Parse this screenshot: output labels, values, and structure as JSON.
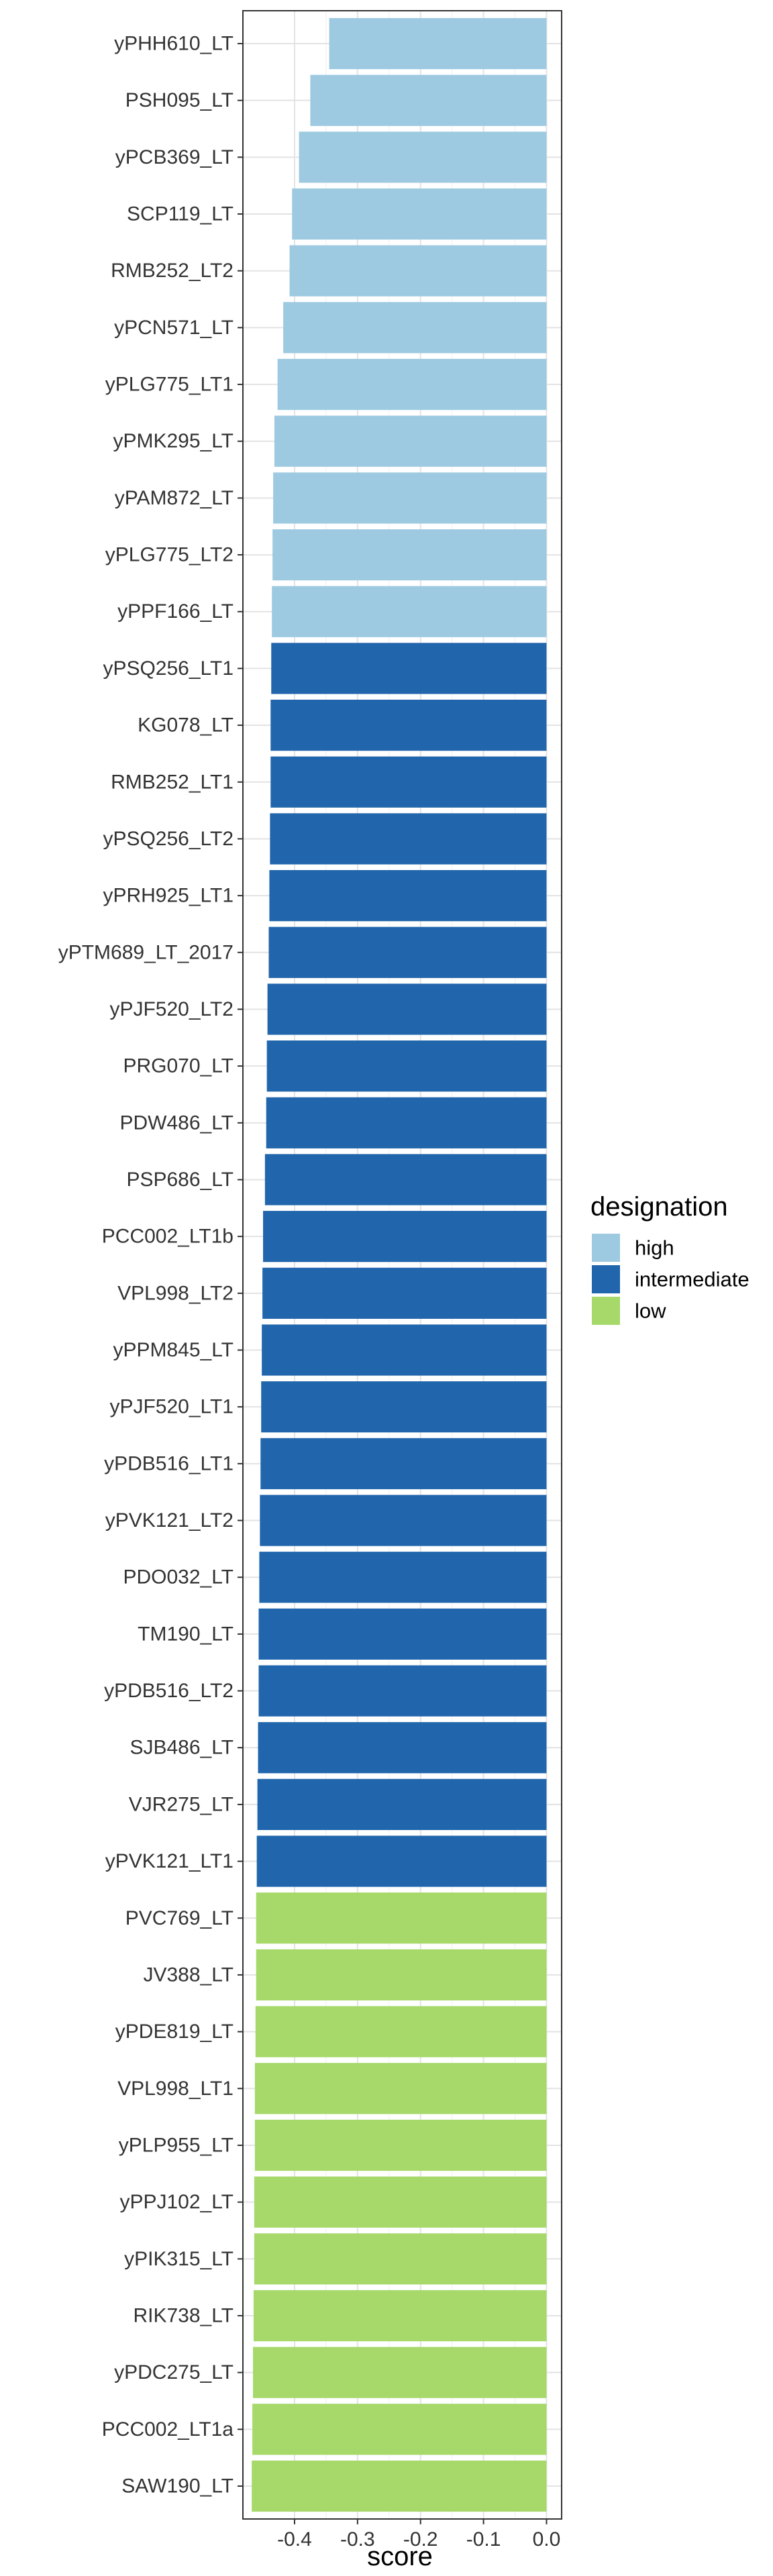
{
  "chart_data": {
    "type": "bar",
    "orientation": "horizontal",
    "title": "",
    "xlabel": "score",
    "ylabel": "",
    "xlim": [
      -0.482,
      0.024
    ],
    "x_ticks": [
      {
        "value": -0.4,
        "label": "-0.4"
      },
      {
        "value": -0.3,
        "label": "-0.3"
      },
      {
        "value": -0.2,
        "label": "-0.2"
      },
      {
        "value": -0.1,
        "label": "-0.1"
      },
      {
        "value": 0.0,
        "label": "0.0"
      }
    ],
    "grid": true,
    "legend": {
      "title": "designation",
      "position": "right",
      "items": [
        {
          "label": "high",
          "color": "#9ECAE1"
        },
        {
          "label": "intermediate",
          "color": "#2166AC"
        },
        {
          "label": "low",
          "color": "#A6D96A"
        }
      ]
    },
    "bars": [
      {
        "category": "yPHH610_LT",
        "value": -0.345,
        "designation": "high"
      },
      {
        "category": "PSH095_LT",
        "value": -0.375,
        "designation": "high"
      },
      {
        "category": "yPCB369_LT",
        "value": -0.393,
        "designation": "high"
      },
      {
        "category": "SCP119_LT",
        "value": -0.404,
        "designation": "high"
      },
      {
        "category": "RMB252_LT2",
        "value": -0.408,
        "designation": "high"
      },
      {
        "category": "yPCN571_LT",
        "value": -0.418,
        "designation": "high"
      },
      {
        "category": "yPLG775_LT1",
        "value": -0.427,
        "designation": "high"
      },
      {
        "category": "yPMK295_LT",
        "value": -0.432,
        "designation": "high"
      },
      {
        "category": "yPAM872_LT",
        "value": -0.434,
        "designation": "high"
      },
      {
        "category": "yPLG775_LT2",
        "value": -0.435,
        "designation": "high"
      },
      {
        "category": "yPPF166_LT",
        "value": -0.436,
        "designation": "high"
      },
      {
        "category": "yPSQ256_LT1",
        "value": -0.437,
        "designation": "intermediate"
      },
      {
        "category": "KG078_LT",
        "value": -0.438,
        "designation": "intermediate"
      },
      {
        "category": "RMB252_LT1",
        "value": -0.438,
        "designation": "intermediate"
      },
      {
        "category": "yPSQ256_LT2",
        "value": -0.439,
        "designation": "intermediate"
      },
      {
        "category": "yPRH925_LT1",
        "value": -0.44,
        "designation": "intermediate"
      },
      {
        "category": "yPTM689_LT_2017",
        "value": -0.441,
        "designation": "intermediate"
      },
      {
        "category": "yPJF520_LT2",
        "value": -0.443,
        "designation": "intermediate"
      },
      {
        "category": "PRG070_LT",
        "value": -0.444,
        "designation": "intermediate"
      },
      {
        "category": "PDW486_LT",
        "value": -0.445,
        "designation": "intermediate"
      },
      {
        "category": "PSP686_LT",
        "value": -0.447,
        "designation": "intermediate"
      },
      {
        "category": "PCC002_LT1b",
        "value": -0.45,
        "designation": "intermediate"
      },
      {
        "category": "VPL998_LT2",
        "value": -0.451,
        "designation": "intermediate"
      },
      {
        "category": "yPPM845_LT",
        "value": -0.452,
        "designation": "intermediate"
      },
      {
        "category": "yPJF520_LT1",
        "value": -0.453,
        "designation": "intermediate"
      },
      {
        "category": "yPDB516_LT1",
        "value": -0.454,
        "designation": "intermediate"
      },
      {
        "category": "yPVK121_LT2",
        "value": -0.455,
        "designation": "intermediate"
      },
      {
        "category": "PDO032_LT",
        "value": -0.456,
        "designation": "intermediate"
      },
      {
        "category": "TM190_LT",
        "value": -0.457,
        "designation": "intermediate"
      },
      {
        "category": "yPDB516_LT2",
        "value": -0.457,
        "designation": "intermediate"
      },
      {
        "category": "SJB486_LT",
        "value": -0.458,
        "designation": "intermediate"
      },
      {
        "category": "VJR275_LT",
        "value": -0.459,
        "designation": "intermediate"
      },
      {
        "category": "yPVK121_LT1",
        "value": -0.46,
        "designation": "intermediate"
      },
      {
        "category": "PVC769_LT",
        "value": -0.461,
        "designation": "low"
      },
      {
        "category": "JV388_LT",
        "value": -0.461,
        "designation": "low"
      },
      {
        "category": "yPDE819_LT",
        "value": -0.462,
        "designation": "low"
      },
      {
        "category": "VPL998_LT1",
        "value": -0.463,
        "designation": "low"
      },
      {
        "category": "yPLP955_LT",
        "value": -0.463,
        "designation": "low"
      },
      {
        "category": "yPPJ102_LT",
        "value": -0.464,
        "designation": "low"
      },
      {
        "category": "yPIK315_LT",
        "value": -0.464,
        "designation": "low"
      },
      {
        "category": "RIK738_LT",
        "value": -0.465,
        "designation": "low"
      },
      {
        "category": "yPDC275_LT",
        "value": -0.466,
        "designation": "low"
      },
      {
        "category": "PCC002_LT1a",
        "value": -0.467,
        "designation": "low"
      },
      {
        "category": "SAW190_LT",
        "value": -0.468,
        "designation": "low"
      }
    ]
  }
}
